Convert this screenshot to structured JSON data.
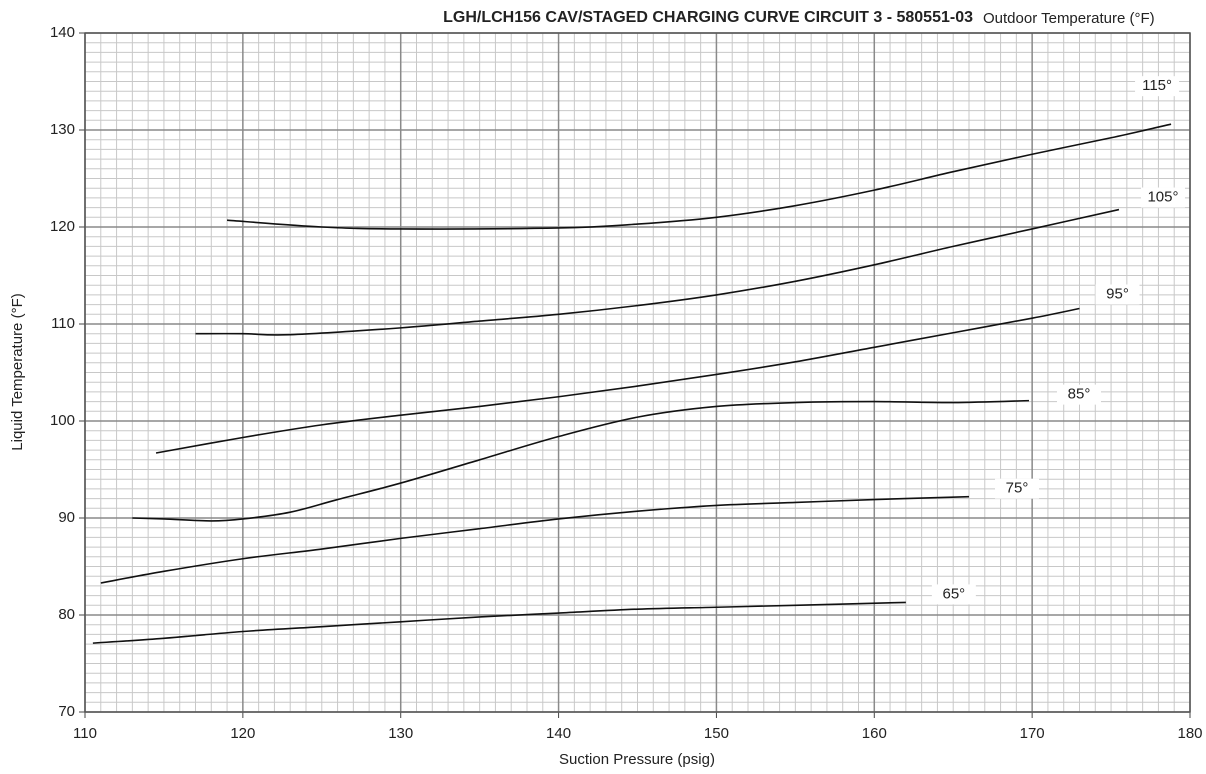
{
  "chart_data": {
    "type": "line",
    "title": "LGH/LCH156 CAV/STAGED CHARGING CURVE CIRCUIT 3 - 580551-03",
    "legend_title": "Outdoor Temperature (°F)",
    "x_label": "Suction Pressure (psig)",
    "y_label": "Liquid  Temperature  (°F)",
    "xlim": [
      110,
      180
    ],
    "xticks": [
      110,
      120,
      130,
      140,
      150,
      160,
      170,
      180
    ],
    "ylim": [
      70,
      140
    ],
    "yticks": [
      70,
      80,
      90,
      100,
      110,
      120,
      130,
      140
    ],
    "grid": true,
    "minor_grid_divisions": 10,
    "series": [
      {
        "name": "115°",
        "color": "#111111",
        "x": [
          119,
          125,
          130,
          140,
          145,
          150,
          155,
          160,
          165,
          170,
          175,
          178.8
        ],
        "values": [
          120.7,
          120.0,
          119.8,
          119.9,
          120.3,
          121.0,
          122.2,
          123.8,
          125.7,
          127.5,
          129.2,
          130.6
        ]
      },
      {
        "name": "105°",
        "color": "#111111",
        "x": [
          117,
          120,
          123,
          130,
          135,
          140,
          145,
          150,
          155,
          160,
          165,
          170,
          175.5
        ],
        "values": [
          109.0,
          109.0,
          108.9,
          109.6,
          110.3,
          111.0,
          111.9,
          113.0,
          114.4,
          116.1,
          118.0,
          119.8,
          121.8
        ]
      },
      {
        "name": "95°",
        "color": "#111111",
        "x": [
          114.5,
          120,
          125,
          130,
          135,
          140,
          145,
          150,
          155,
          160,
          165,
          170,
          173
        ],
        "values": [
          96.7,
          98.3,
          99.6,
          100.6,
          101.5,
          102.5,
          103.6,
          104.8,
          106.1,
          107.6,
          109.1,
          110.6,
          111.6
        ]
      },
      {
        "name": "85°",
        "color": "#111111",
        "x": [
          113,
          115,
          118,
          120,
          123,
          126,
          130,
          135,
          140,
          145,
          150,
          155,
          160,
          165,
          169.8
        ],
        "values": [
          90.0,
          89.9,
          89.7,
          89.9,
          90.6,
          91.9,
          93.6,
          96.0,
          98.4,
          100.4,
          101.5,
          101.9,
          102.0,
          101.9,
          102.1
        ]
      },
      {
        "name": "75°",
        "color": "#111111",
        "x": [
          111,
          115,
          120,
          125,
          130,
          135,
          140,
          145,
          150,
          155,
          160,
          166
        ],
        "values": [
          83.3,
          84.5,
          85.8,
          86.8,
          87.9,
          88.9,
          89.9,
          90.7,
          91.3,
          91.6,
          91.9,
          92.2
        ]
      },
      {
        "name": "65°",
        "color": "#111111",
        "x": [
          110.5,
          115,
          120,
          125,
          130,
          135,
          140,
          145,
          150,
          155,
          162
        ],
        "values": [
          77.1,
          77.6,
          78.3,
          78.8,
          79.3,
          79.8,
          80.2,
          80.6,
          80.8,
          81.0,
          81.3
        ]
      }
    ]
  }
}
